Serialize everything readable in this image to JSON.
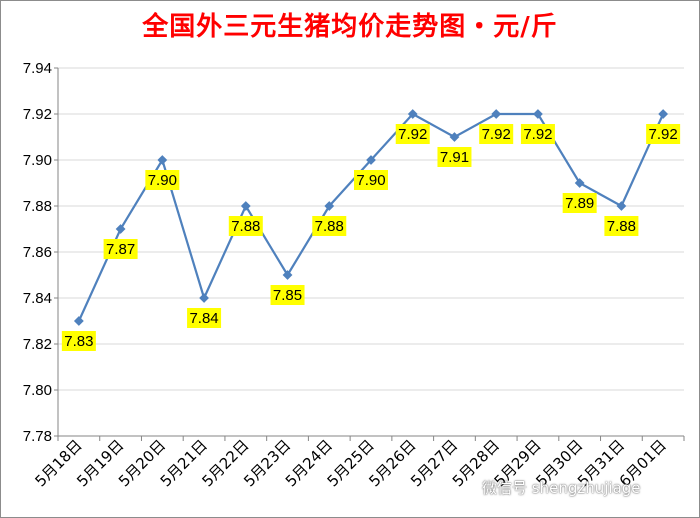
{
  "chart_data": {
    "type": "line",
    "title": "全国外三元生猪均价走势图・元/斤",
    "categories": [
      "5月18日",
      "5月19日",
      "5月20日",
      "5月21日",
      "5月22日",
      "5月23日",
      "5月24日",
      "5月25日",
      "5月26日",
      "5月27日",
      "5月28日",
      "5月29日",
      "5月30日",
      "5月31日",
      "6月01日"
    ],
    "series": [
      {
        "values": [
          7.83,
          7.87,
          7.9,
          7.84,
          7.88,
          7.85,
          7.88,
          7.9,
          7.92,
          7.91,
          7.92,
          7.92,
          7.89,
          7.88,
          7.92
        ]
      }
    ],
    "data_labels": [
      "7.83",
      "7.87",
      "7.90",
      "7.84",
      "7.88",
      "7.85",
      "7.88",
      "7.90",
      "7.92",
      "7.91",
      "7.92",
      "7.92",
      "7.89",
      "7.88",
      "7.92"
    ],
    "yticks": [
      "7.78",
      "7.80",
      "7.82",
      "7.84",
      "7.86",
      "7.88",
      "7.90",
      "7.92",
      "7.94"
    ],
    "ylim": [
      7.78,
      7.94
    ],
    "grid": true,
    "legend": "none",
    "colors": {
      "title": "#ff0000",
      "line": "#4f81bd",
      "label_bg": "#ffff00",
      "grid": "#d9d9d9"
    }
  },
  "watermark": "微信号 shengzhujiage"
}
